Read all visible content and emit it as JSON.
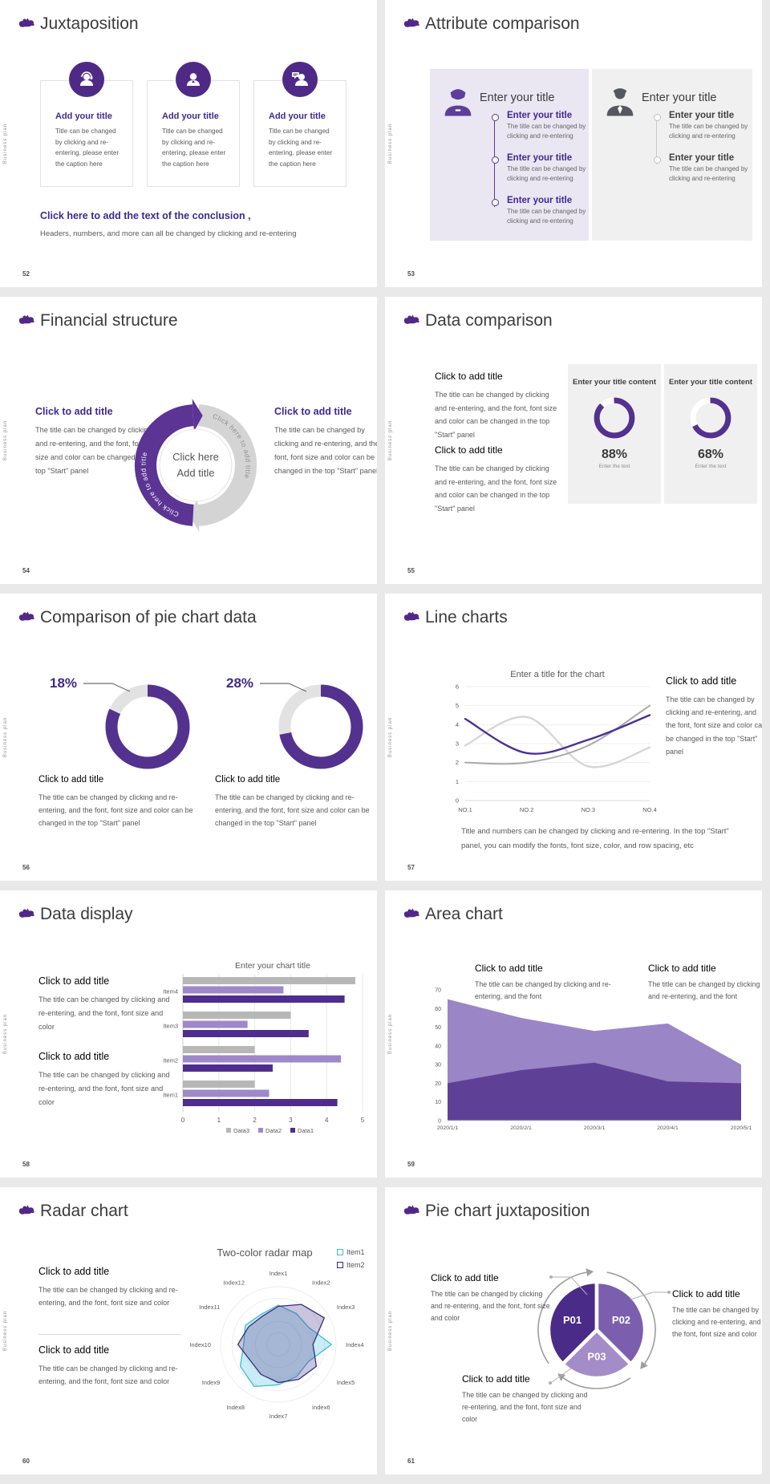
{
  "app": {
    "background": "#e9e9e9",
    "slide_background": "#ffffff",
    "brand_color": "#512888"
  },
  "common": {
    "vertical_label": "Business plan"
  },
  "slides": {
    "s52": {
      "number": "52",
      "title": "Juxtaposition",
      "cards": [
        {
          "icon": "person-headset-icon",
          "title": "Add your title",
          "body": "Title can be changed by clicking and re-entering, please enter the caption here"
        },
        {
          "icon": "person-icon",
          "title": "Add your title",
          "body": "Title can be changed by clicking and re-entering, please enter the caption here"
        },
        {
          "icon": "person-chat-icon",
          "title": "Add your title",
          "body": "Title can be changed by clicking and re-entering, please enter the caption here"
        }
      ],
      "conclusion_title": "Click here to add the text of the conclusion ,",
      "conclusion_body": "Headers, numbers, and more can all be changed by clicking and re-entering"
    },
    "s53": {
      "number": "53",
      "title": "Attribute comparison",
      "left": {
        "header": "Enter your title",
        "items": [
          {
            "title": "Enter your title",
            "body": "The title can be changed by clicking and re-entering"
          },
          {
            "title": "Enter your title",
            "body": "The title can be changed by clicking and re-entering"
          },
          {
            "title": "Enter your title",
            "body": "The title can be changed by clicking and re-entering"
          }
        ]
      },
      "right": {
        "header": "Enter your title",
        "items": [
          {
            "title": "Enter your title",
            "body": "The title can be changed by clicking and re-entering"
          },
          {
            "title": "Enter your title",
            "body": "The title can be changed by clicking and re-entering"
          }
        ]
      }
    },
    "s54": {
      "number": "54",
      "title": "Financial structure",
      "left": {
        "title": "Click to add title",
        "body": "The title can be changed by clicking and re-entering, and the font, font size and color can be changed in the top \"Start\" panel"
      },
      "right": {
        "title": "Click to add title",
        "body": "The title can be changed by clicking and re-entering, and the font, font size and color can be changed in the top \"Start\" panel"
      },
      "ring": {
        "left_arc_label": "Click here to add title",
        "right_arc_label": "Click here to add title",
        "center_line1": "Click here",
        "center_line2": "Add title"
      }
    },
    "s55": {
      "number": "55",
      "title": "Data comparison",
      "blocks": [
        {
          "title": "Click to add title",
          "body": "The title can be changed by clicking and re-entering, and the font, font size and color can be changed in the top \"Start\" panel"
        },
        {
          "title": "Click to add title",
          "body": "The title can be changed by clicking and re-entering, and the font, font size and color can be changed in the top \"Start\" panel"
        }
      ]
    },
    "s56": {
      "number": "56",
      "title": "Comparison of pie chart data",
      "blocks": [
        {
          "title": "Click to add title",
          "body": "The title can be changed by clicking and re-entering, and the font, font size and color can be changed in the top \"Start\" panel"
        },
        {
          "title": "Click to add title",
          "body": "The title can be changed by clicking and re-entering, and the font, font size and color can be changed in the top \"Start\" panel"
        }
      ]
    },
    "s57": {
      "number": "57",
      "title": "Line charts",
      "block": {
        "title": "Click to add title",
        "body": "The title can be changed by clicking and re-entering, and the font, font size and color can be changed in the top \"Start\" panel"
      },
      "footer": "Title and numbers can be changed by clicking and re-entering. In the top \"Start\" panel, you can modify the fonts, font size, color, and row spacing, etc"
    },
    "s58": {
      "number": "58",
      "title": "Data display",
      "blocks": [
        {
          "title": "Click to add title",
          "body": "The title can be changed by clicking and re-entering, and the font, font size and color"
        },
        {
          "title": "Click to add title",
          "body": "The title can be changed by clicking and re-entering, and the font, font size and color"
        }
      ]
    },
    "s59": {
      "number": "59",
      "title": "Area chart",
      "blocks": [
        {
          "title": "Click to add title",
          "body": "The title can be changed by clicking and re-entering, and the font"
        },
        {
          "title": "Click to add title",
          "body": "The title can be changed by clicking and re-entering, and the font"
        }
      ]
    },
    "s60": {
      "number": "60",
      "title": "Radar chart",
      "blocks": [
        {
          "title": "Click to add title",
          "body": "The title can be changed by clicking and re-entering, and the font, font size and color"
        },
        {
          "title": "Click to add title",
          "body": "The title can be changed by clicking and re-entering, and the font, font size and color"
        }
      ]
    },
    "s61": {
      "number": "61",
      "title": "Pie chart juxtaposition",
      "blocks": [
        {
          "title": "Click to add title",
          "body": "The title can be changed by clicking and re-entering, and the font, font size and color"
        },
        {
          "title": "Click to add title",
          "body": "The title can be changed by clicking and re-entering, and the font, font size and color"
        },
        {
          "title": "Click to add title",
          "body": "The title can be changed by clicking and re-entering, and the font, font size and color"
        }
      ]
    }
  },
  "chart_data": [
    {
      "id": "c55a",
      "type": "pie",
      "subtype": "donut",
      "header": "Enter your title content",
      "percent": 88,
      "percent_label": "88%",
      "caption": "Enter the text",
      "values": [
        88,
        12
      ],
      "colors": [
        "#53318e",
        "#ffffff"
      ]
    },
    {
      "id": "c55b",
      "type": "pie",
      "subtype": "donut",
      "header": "Enter your title content",
      "percent": 68,
      "percent_label": "68%",
      "caption": "Enter the text",
      "values": [
        68,
        32
      ],
      "colors": [
        "#53318e",
        "#ffffff"
      ]
    },
    {
      "id": "c56a",
      "type": "pie",
      "subtype": "donut",
      "label": "18%",
      "highlight_percent": 18,
      "values": [
        82,
        18
      ],
      "colors": [
        "#53318e",
        "#e2e2e2"
      ]
    },
    {
      "id": "c56b",
      "type": "pie",
      "subtype": "donut",
      "label": "28%",
      "highlight_percent": 28,
      "values": [
        72,
        28
      ],
      "colors": [
        "#53318e",
        "#e2e2e2"
      ]
    },
    {
      "id": "c57",
      "type": "line",
      "title": "Enter a title for the chart",
      "x": [
        "NO.1",
        "NO.2",
        "NO.3",
        "NO.4"
      ],
      "ylim": [
        0,
        6
      ],
      "yticks": [
        0,
        1,
        2,
        3,
        4,
        5,
        6
      ],
      "grid": true,
      "series": [
        {
          "name": "purple-line",
          "color": "#4a2f96",
          "width": 2.4,
          "values": [
            4.3,
            2.5,
            3.2,
            4.5
          ]
        },
        {
          "name": "gray-line",
          "color": "#a9a9a9",
          "width": 2,
          "values": [
            2.0,
            2.0,
            2.9,
            5.0
          ]
        },
        {
          "name": "light-gray-line",
          "color": "#d6d6d6",
          "width": 2.4,
          "values": [
            2.9,
            4.4,
            1.8,
            2.8
          ]
        }
      ]
    },
    {
      "id": "c58",
      "type": "bar",
      "orientation": "horizontal",
      "title": "Enter your chart title",
      "categories": [
        "Item1",
        "Item2",
        "Item3",
        "Item4"
      ],
      "xlim": [
        0,
        5
      ],
      "xticks": [
        0,
        1,
        2,
        3,
        4,
        5
      ],
      "legend": [
        "Data3",
        "Data2",
        "Data1"
      ],
      "series": [
        {
          "name": "Data3",
          "color": "#b7b7b7",
          "values": [
            2.0,
            2.0,
            3.0,
            4.8
          ]
        },
        {
          "name": "Data2",
          "color": "#9d89c9",
          "values": [
            2.4,
            4.4,
            1.8,
            2.8
          ]
        },
        {
          "name": "Data1",
          "color": "#4e2d8e",
          "values": [
            4.3,
            2.5,
            3.5,
            4.5
          ]
        }
      ]
    },
    {
      "id": "c59",
      "type": "area",
      "x": [
        "2020/1/1",
        "2020/2/1",
        "2020/3/1",
        "2020/4/1",
        "2020/5/1"
      ],
      "ylim": [
        0,
        70
      ],
      "yticks": [
        0,
        10,
        20,
        30,
        40,
        50,
        60,
        70
      ],
      "series": [
        {
          "name": "back-area",
          "color": "#9a85c6",
          "values": [
            65,
            55,
            48,
            52,
            30
          ]
        },
        {
          "name": "front-area",
          "color": "#5e4197",
          "values": [
            20,
            27,
            31,
            21,
            20
          ]
        }
      ]
    },
    {
      "id": "c60",
      "type": "radar",
      "title": "Two-color radar map",
      "rmax": 5,
      "axes": [
        "Index1",
        "Index2",
        "Index3",
        "Index4",
        "Index5",
        "Index6",
        "Index7",
        "Index8",
        "Index9",
        "Index10",
        "Index11",
        "Index12"
      ],
      "series": [
        {
          "name": "Item1",
          "color": "#3fb9d8",
          "values": [
            3.4,
            3.1,
            3.0,
            4.6,
            3.0,
            3.2,
            3.5,
            4.2,
            3.8,
            3.0,
            3.3,
            3.0
          ]
        },
        {
          "name": "Item2",
          "color": "#352e78",
          "values": [
            3.3,
            4.0,
            4.6,
            3.0,
            3.8,
            3.5,
            3.3,
            3.0,
            2.8,
            3.5,
            3.0,
            2.8
          ]
        }
      ]
    },
    {
      "id": "c61",
      "type": "pie",
      "labels": [
        "P01",
        "P02",
        "P03"
      ],
      "values": [
        33.3,
        33.3,
        33.4
      ],
      "colors": [
        "#4a2b87",
        "#7b5fae",
        "#a48cc8"
      ]
    }
  ]
}
